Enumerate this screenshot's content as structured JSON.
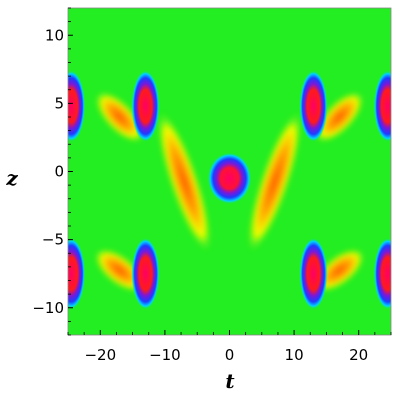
{
  "chart_data": {
    "type": "heatmap",
    "title": "",
    "xlabel": "t",
    "ylabel": "z",
    "xlim": [
      -25,
      25
    ],
    "ylim": [
      -12,
      12
    ],
    "x_ticks": [
      -20,
      -10,
      0,
      10,
      20
    ],
    "y_ticks": [
      -10,
      -5,
      0,
      5,
      10
    ],
    "x_tick_labels": [
      "−20",
      "−10",
      "0",
      "10",
      "20"
    ],
    "y_tick_labels": [
      "−10",
      "−5",
      "0",
      "5",
      "10"
    ],
    "colormap": "rainbow",
    "colormap_stops": [
      "#00c8ff",
      "#1e2cff",
      "#8a2be2",
      "#22ee22",
      "#ffff00",
      "#ff3300",
      "#ff0066"
    ],
    "background_color": "#22ee22",
    "grid": false,
    "peaks": [
      {
        "t": -24.5,
        "z": 4.8
      },
      {
        "t": -24.5,
        "z": -7.5
      },
      {
        "t": -13,
        "z": 4.8
      },
      {
        "t": -13,
        "z": -7.5
      },
      {
        "t": 13,
        "z": 4.8
      },
      {
        "t": 13,
        "z": -7.5
      },
      {
        "t": 24.5,
        "z": 4.8
      },
      {
        "t": 24.5,
        "z": -7.5
      },
      {
        "t": 0,
        "z": -0.5
      }
    ],
    "ridges": [
      {
        "t_from": -19,
        "z_from": 5,
        "t_to": -15,
        "z_to": 3
      },
      {
        "t_from": -19,
        "z_from": -6.5,
        "t_to": -15,
        "z_to": -8
      },
      {
        "t_from": 15,
        "z_from": 3,
        "t_to": 19,
        "z_to": 5
      },
      {
        "t_from": 15,
        "z_from": -8,
        "t_to": 19,
        "z_to": -6.5
      },
      {
        "t_from": -10,
        "z_from": 3.5,
        "t_to": -4,
        "z_to": -5
      },
      {
        "t_from": 10,
        "z_from": 3.5,
        "t_to": 4,
        "z_to": -5
      }
    ]
  }
}
